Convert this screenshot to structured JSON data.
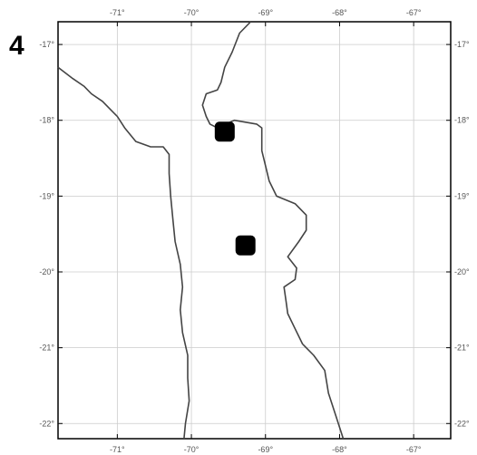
{
  "figure": {
    "panel_number": "4"
  },
  "map": {
    "projection": "lat-lon grid",
    "lon_range": [
      -71.8,
      -66.5
    ],
    "lat_range": [
      -22.2,
      -16.7
    ],
    "lon_ticks": [
      -71,
      -70,
      -69,
      -68,
      -67
    ],
    "lat_ticks": [
      -17,
      -18,
      -19,
      -20,
      -21,
      -22
    ],
    "lon_tick_labels": [
      "-71°",
      "-70°",
      "-69°",
      "-68°",
      "-67°"
    ],
    "lat_tick_labels": [
      "-17°",
      "-18°",
      "-19°",
      "-20°",
      "-21°",
      "-22°"
    ],
    "gridlines": true,
    "colors": {
      "border": "#000000",
      "grid": "#cccccc",
      "line": "#444444",
      "marker": "#000000"
    }
  },
  "chart_data": {
    "type": "scatter",
    "title": "",
    "xlabel": "",
    "ylabel": "",
    "xlim": [
      -71.8,
      -66.5
    ],
    "ylim": [
      -22.2,
      -16.7
    ],
    "points": [
      {
        "lon": -69.55,
        "lat": -18.15
      },
      {
        "lon": -69.27,
        "lat": -19.65
      }
    ],
    "boundaries": [
      {
        "name": "coastline",
        "coords": [
          [
            -71.8,
            -17.3
          ],
          [
            -71.6,
            -17.45
          ],
          [
            -71.45,
            -17.55
          ],
          [
            -71.35,
            -17.65
          ],
          [
            -71.2,
            -17.75
          ],
          [
            -71.1,
            -17.85
          ],
          [
            -71.0,
            -17.95
          ],
          [
            -70.9,
            -18.1
          ],
          [
            -70.75,
            -18.28
          ],
          [
            -70.55,
            -18.35
          ],
          [
            -70.38,
            -18.35
          ],
          [
            -70.3,
            -18.45
          ],
          [
            -70.3,
            -18.7
          ],
          [
            -70.28,
            -19.0
          ],
          [
            -70.25,
            -19.3
          ],
          [
            -70.22,
            -19.6
          ],
          [
            -70.15,
            -19.9
          ],
          [
            -70.12,
            -20.2
          ],
          [
            -70.15,
            -20.5
          ],
          [
            -70.12,
            -20.8
          ],
          [
            -70.05,
            -21.1
          ],
          [
            -70.05,
            -21.4
          ],
          [
            -70.03,
            -21.7
          ],
          [
            -70.08,
            -22.0
          ],
          [
            -70.1,
            -22.2
          ]
        ]
      },
      {
        "name": "border",
        "coords": [
          [
            -69.2,
            -16.7
          ],
          [
            -69.35,
            -16.85
          ],
          [
            -69.45,
            -17.1
          ],
          [
            -69.55,
            -17.3
          ],
          [
            -69.6,
            -17.5
          ],
          [
            -69.65,
            -17.6
          ],
          [
            -69.8,
            -17.65
          ],
          [
            -69.85,
            -17.8
          ],
          [
            -69.8,
            -17.95
          ],
          [
            -69.75,
            -18.05
          ],
          [
            -69.65,
            -18.1
          ],
          [
            -69.42,
            -18.0
          ],
          [
            -69.12,
            -18.05
          ],
          [
            -69.05,
            -18.1
          ],
          [
            -69.05,
            -18.4
          ],
          [
            -69.0,
            -18.6
          ],
          [
            -68.95,
            -18.8
          ],
          [
            -68.85,
            -19.0
          ],
          [
            -68.6,
            -19.1
          ],
          [
            -68.45,
            -19.25
          ],
          [
            -68.45,
            -19.45
          ],
          [
            -68.55,
            -19.6
          ],
          [
            -68.7,
            -19.8
          ],
          [
            -68.58,
            -19.95
          ],
          [
            -68.6,
            -20.1
          ],
          [
            -68.75,
            -20.2
          ],
          [
            -68.72,
            -20.4
          ],
          [
            -68.7,
            -20.55
          ],
          [
            -68.6,
            -20.75
          ],
          [
            -68.5,
            -20.95
          ],
          [
            -68.35,
            -21.1
          ],
          [
            -68.2,
            -21.3
          ],
          [
            -68.15,
            -21.6
          ],
          [
            -68.05,
            -21.9
          ],
          [
            -67.95,
            -22.2
          ]
        ]
      }
    ]
  }
}
